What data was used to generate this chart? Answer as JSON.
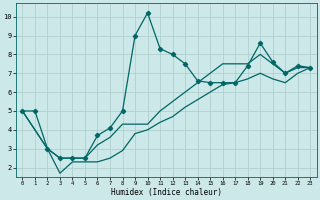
{
  "xlabel": "Humidex (Indice chaleur)",
  "ylabel": "",
  "bg_color": "#cce8e8",
  "grid_color": "#aacccc",
  "line_color": "#006666",
  "xlim": [
    -0.5,
    23.5
  ],
  "ylim": [
    1.5,
    10.7
  ],
  "yticks": [
    2,
    3,
    4,
    5,
    6,
    7,
    8,
    9,
    10
  ],
  "xticks": [
    0,
    1,
    2,
    3,
    4,
    5,
    6,
    7,
    8,
    9,
    10,
    11,
    12,
    13,
    14,
    15,
    16,
    17,
    18,
    19,
    20,
    21,
    22,
    23
  ],
  "series": [
    {
      "x": [
        0,
        1,
        2,
        3,
        4,
        5,
        6,
        7,
        8,
        9,
        10,
        11,
        12,
        13,
        14,
        15,
        16,
        17,
        18,
        19,
        20,
        21,
        22,
        23
      ],
      "y": [
        5.0,
        5.0,
        3.0,
        2.5,
        2.5,
        2.5,
        3.7,
        4.1,
        5.0,
        9.0,
        10.2,
        8.3,
        8.0,
        7.5,
        6.6,
        6.5,
        6.5,
        6.5,
        7.4,
        8.6,
        7.6,
        7.0,
        7.4,
        7.3
      ],
      "marker": "D",
      "markersize": 2.2
    },
    {
      "x": [
        0,
        2,
        3,
        4,
        5,
        6,
        7,
        8,
        9,
        10,
        11,
        12,
        13,
        14,
        15,
        16,
        17,
        18,
        19,
        20,
        21,
        22,
        23
      ],
      "y": [
        5.0,
        3.0,
        2.5,
        2.5,
        2.5,
        3.2,
        3.6,
        4.3,
        4.3,
        4.3,
        5.0,
        5.5,
        6.0,
        6.5,
        7.0,
        7.5,
        7.5,
        7.5,
        8.0,
        7.5,
        7.0,
        7.3,
        7.3
      ],
      "marker": null,
      "markersize": 0
    },
    {
      "x": [
        0,
        2,
        3,
        4,
        5,
        6,
        7,
        8,
        9,
        10,
        11,
        12,
        13,
        14,
        15,
        16,
        17,
        18,
        19,
        20,
        21,
        22,
        23
      ],
      "y": [
        5.0,
        3.0,
        1.7,
        2.3,
        2.3,
        2.3,
        2.5,
        2.9,
        3.8,
        4.0,
        4.4,
        4.7,
        5.2,
        5.6,
        6.0,
        6.4,
        6.5,
        6.7,
        7.0,
        6.7,
        6.5,
        7.0,
        7.3
      ],
      "marker": null,
      "markersize": 0
    }
  ]
}
